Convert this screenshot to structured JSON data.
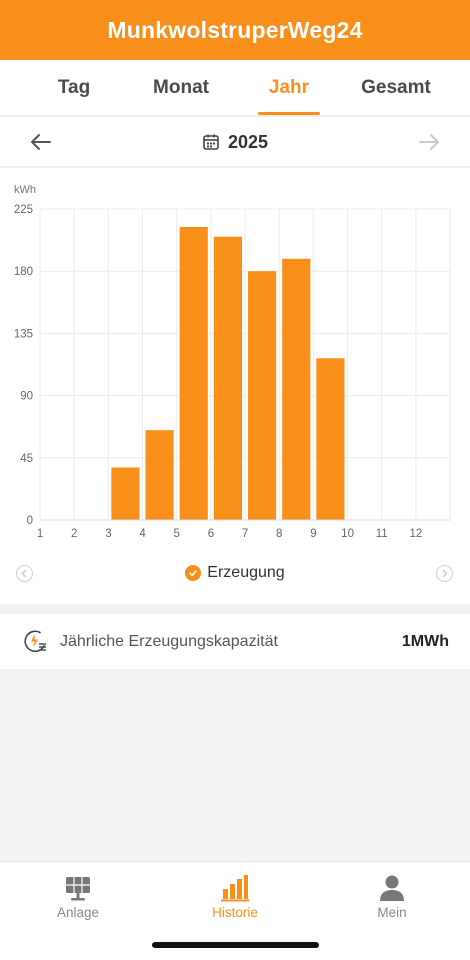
{
  "header": {
    "title": "MunkwolstruperWeg24"
  },
  "tabs": [
    {
      "label": "Tag",
      "active": false
    },
    {
      "label": "Monat",
      "active": false
    },
    {
      "label": "Jahr",
      "active": true
    },
    {
      "label": "Gesamt",
      "active": false
    }
  ],
  "date_nav": {
    "year": "2025",
    "prev_icon": "arrow-left-icon",
    "next_icon": "arrow-right-icon",
    "calendar_icon": "calendar-icon"
  },
  "chart_data": {
    "type": "bar",
    "ylabel": "kWh",
    "ylim": [
      0,
      225
    ],
    "yticks": [
      "225",
      "180",
      "135",
      "90",
      "45",
      "0"
    ],
    "categories": [
      "1",
      "2",
      "3",
      "4",
      "5",
      "6",
      "7",
      "8",
      "9",
      "10",
      "11",
      "12"
    ],
    "series": [
      {
        "name": "Erzeugung",
        "values": [
          0,
          0,
          38,
          65,
          212,
          205,
          180,
          189,
          117,
          0,
          0,
          0
        ],
        "color": "#f98f1b"
      }
    ],
    "grid": true
  },
  "legend": {
    "label": "Erzeugung",
    "icon": "check-circle-icon"
  },
  "capacity": {
    "label": "Jährliche Erzeugungskapazität",
    "value": "1MWh",
    "icon": "energy-capacity-icon"
  },
  "bottom_nav": [
    {
      "label": "Anlage",
      "icon": "solar-panel-icon",
      "active": false
    },
    {
      "label": "Historie",
      "icon": "bar-chart-icon",
      "active": true
    },
    {
      "label": "Mein",
      "icon": "user-icon",
      "active": false
    }
  ],
  "colors": {
    "accent": "#f98f1b",
    "text": "#333333",
    "muted": "#888888"
  }
}
